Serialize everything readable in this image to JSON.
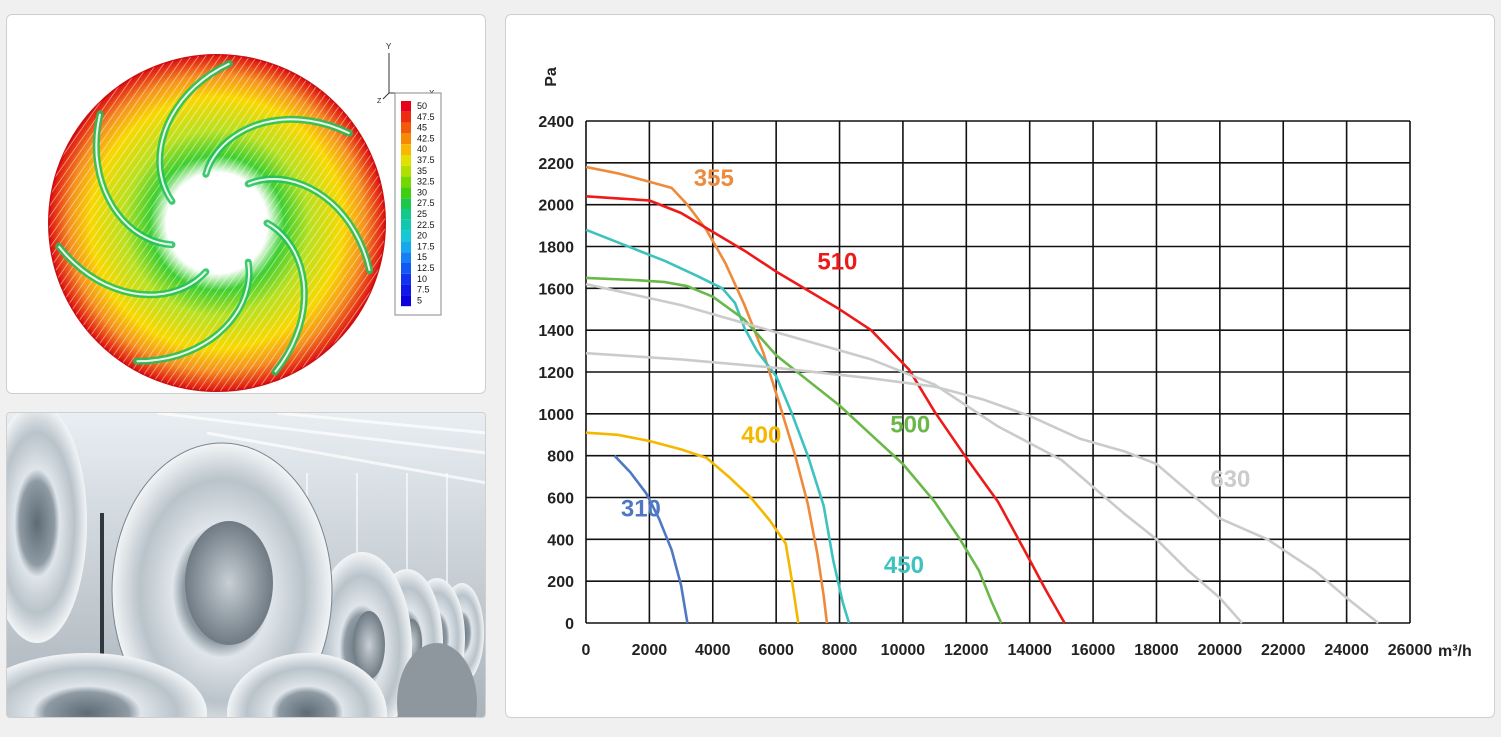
{
  "simulation": {
    "axis_x_label": "X",
    "axis_y_label": "Y",
    "axis_z_label": "Z",
    "legend_values": [
      "50",
      "47.5",
      "45",
      "42.5",
      "40",
      "37.5",
      "35",
      "32.5",
      "30",
      "27.5",
      "25",
      "22.5",
      "20",
      "17.5",
      "15",
      "12.5",
      "10",
      "7.5",
      "5"
    ],
    "legend_colors": [
      "#e8001a",
      "#ee2a10",
      "#f25a0a",
      "#f58a05",
      "#f9b800",
      "#e2e000",
      "#b0e000",
      "#74d800",
      "#3ecf10",
      "#1cc84a",
      "#12c88a",
      "#10c8b0",
      "#14c8d8",
      "#14a8ec",
      "#1480f4",
      "#1458f4",
      "#1232f0",
      "#0f18e8",
      "#0a00e0"
    ]
  },
  "photo": {
    "subject": "steel coils in warehouse"
  },
  "chart_data": {
    "type": "line",
    "ylabel": "Pa",
    "xlabel": "m³/h",
    "xlim": [
      0,
      26000
    ],
    "ylim": [
      0,
      2400
    ],
    "x_ticks": [
      "0",
      "2000",
      "4000",
      "6000",
      "8000",
      "10000",
      "12000",
      "14000",
      "16000",
      "18000",
      "20000",
      "22000",
      "24000",
      "26000"
    ],
    "y_ticks": [
      "0",
      "200",
      "400",
      "600",
      "800",
      "1000",
      "1200",
      "1400",
      "1600",
      "1800",
      "2000",
      "2200",
      "2400"
    ],
    "grid": true,
    "series": [
      {
        "name": "310",
        "color": "#4f78c4",
        "points": [
          [
            900,
            800
          ],
          [
            1400,
            720
          ],
          [
            1900,
            620
          ],
          [
            2300,
            500
          ],
          [
            2700,
            350
          ],
          [
            3000,
            180
          ],
          [
            3200,
            0
          ]
        ]
      },
      {
        "name": "355",
        "color": "#ee8a3c",
        "points": [
          [
            0,
            2180
          ],
          [
            1000,
            2150
          ],
          [
            2000,
            2110
          ],
          [
            2700,
            2080
          ],
          [
            3200,
            2000
          ],
          [
            3800,
            1880
          ],
          [
            4400,
            1720
          ],
          [
            5000,
            1520
          ],
          [
            5600,
            1290
          ],
          [
            6100,
            1050
          ],
          [
            6600,
            800
          ],
          [
            7000,
            570
          ],
          [
            7300,
            330
          ],
          [
            7500,
            130
          ],
          [
            7600,
            0
          ]
        ]
      },
      {
        "name": "400",
        "color": "#f5b800",
        "points": [
          [
            0,
            910
          ],
          [
            1000,
            900
          ],
          [
            2000,
            870
          ],
          [
            3000,
            830
          ],
          [
            3800,
            790
          ],
          [
            4500,
            700
          ],
          [
            5200,
            600
          ],
          [
            5800,
            490
          ],
          [
            6300,
            380
          ],
          [
            6500,
            200
          ],
          [
            6700,
            0
          ]
        ]
      },
      {
        "name": "450",
        "color": "#3ec2c0",
        "points": [
          [
            0,
            1880
          ],
          [
            1500,
            1790
          ],
          [
            2500,
            1730
          ],
          [
            3500,
            1660
          ],
          [
            4300,
            1600
          ],
          [
            4700,
            1530
          ],
          [
            5000,
            1410
          ],
          [
            5400,
            1300
          ],
          [
            6000,
            1180
          ],
          [
            6500,
            1000
          ],
          [
            7000,
            800
          ],
          [
            7500,
            560
          ],
          [
            7800,
            300
          ],
          [
            8100,
            100
          ],
          [
            8300,
            0
          ]
        ]
      },
      {
        "name": "500",
        "color": "#6ab84a",
        "points": [
          [
            0,
            1650
          ],
          [
            1500,
            1640
          ],
          [
            2500,
            1630
          ],
          [
            3200,
            1610
          ],
          [
            4000,
            1560
          ],
          [
            5000,
            1450
          ],
          [
            6000,
            1280
          ],
          [
            7000,
            1160
          ],
          [
            8000,
            1040
          ],
          [
            9000,
            900
          ],
          [
            10000,
            760
          ],
          [
            11000,
            580
          ],
          [
            11800,
            400
          ],
          [
            12400,
            250
          ],
          [
            12800,
            100
          ],
          [
            13100,
            0
          ]
        ]
      },
      {
        "name": "510",
        "color": "#ee1a1a",
        "points": [
          [
            0,
            2040
          ],
          [
            1000,
            2030
          ],
          [
            2000,
            2020
          ],
          [
            3000,
            1960
          ],
          [
            4000,
            1870
          ],
          [
            5000,
            1780
          ],
          [
            6000,
            1680
          ],
          [
            7000,
            1590
          ],
          [
            8000,
            1500
          ],
          [
            9000,
            1400
          ],
          [
            10200,
            1210
          ],
          [
            11000,
            1010
          ],
          [
            12000,
            790
          ],
          [
            13000,
            580
          ],
          [
            13900,
            330
          ],
          [
            14500,
            160
          ],
          [
            15100,
            0
          ]
        ]
      },
      {
        "name": "630",
        "color": "#cbcbcb",
        "points": [
          [
            0,
            1620
          ],
          [
            3000,
            1520
          ],
          [
            6000,
            1390
          ],
          [
            9000,
            1260
          ],
          [
            11000,
            1140
          ],
          [
            12000,
            1040
          ],
          [
            13000,
            940
          ],
          [
            14000,
            860
          ],
          [
            15000,
            780
          ],
          [
            16000,
            650
          ],
          [
            17000,
            520
          ],
          [
            18000,
            400
          ],
          [
            19000,
            250
          ],
          [
            20000,
            120
          ],
          [
            20700,
            0
          ]
        ]
      },
      {
        "name": "",
        "color": "#cbcbcb",
        "points": [
          [
            0,
            1290
          ],
          [
            3000,
            1260
          ],
          [
            6000,
            1220
          ],
          [
            9000,
            1170
          ],
          [
            11000,
            1130
          ],
          [
            12500,
            1070
          ],
          [
            14000,
            990
          ],
          [
            15600,
            880
          ],
          [
            17000,
            820
          ],
          [
            18000,
            760
          ],
          [
            19000,
            630
          ],
          [
            20000,
            500
          ],
          [
            21500,
            400
          ],
          [
            23000,
            250
          ],
          [
            24000,
            120
          ],
          [
            25000,
            0
          ]
        ]
      }
    ],
    "annotations": [
      {
        "text": "310",
        "series": 0,
        "x": 1100,
        "y": 510
      },
      {
        "text": "355",
        "series": 1,
        "x": 3400,
        "y": 2090
      },
      {
        "text": "400",
        "series": 2,
        "x": 4900,
        "y": 860
      },
      {
        "text": "450",
        "series": 3,
        "x": 9400,
        "y": 240
      },
      {
        "text": "500",
        "series": 4,
        "x": 9600,
        "y": 910
      },
      {
        "text": "510",
        "series": 5,
        "x": 7300,
        "y": 1690
      },
      {
        "text": "630",
        "series": 6,
        "x": 19700,
        "y": 650
      }
    ]
  }
}
